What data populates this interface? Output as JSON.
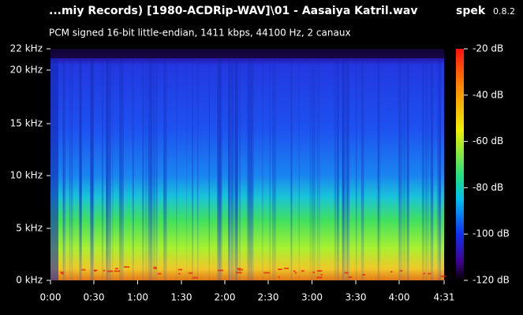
{
  "header": {
    "title": "...miy Records) [1980-ACDRip-WAV]\\01 - Aasaiya Katril.wav",
    "app": "spek",
    "version": "0.8.2",
    "subtitle": "PCM signed 16-bit little-endian, 1411 kbps, 44100 Hz, 2 canaux"
  },
  "frequency_axis": {
    "labels": [
      "22 kHz",
      "20 kHz",
      "15 kHz",
      "10 kHz",
      "5 kHz",
      "0 kHz"
    ]
  },
  "time_axis": {
    "labels": [
      "0:00",
      "0:30",
      "1:00",
      "1:30",
      "2:00",
      "2:30",
      "3:00",
      "3:30",
      "4:00",
      "4:31"
    ]
  },
  "color_scale": {
    "labels": [
      "-20 dB",
      "-40 dB",
      "-60 dB",
      "-80 dB",
      "-100 dB",
      "-120 dB"
    ]
  }
}
